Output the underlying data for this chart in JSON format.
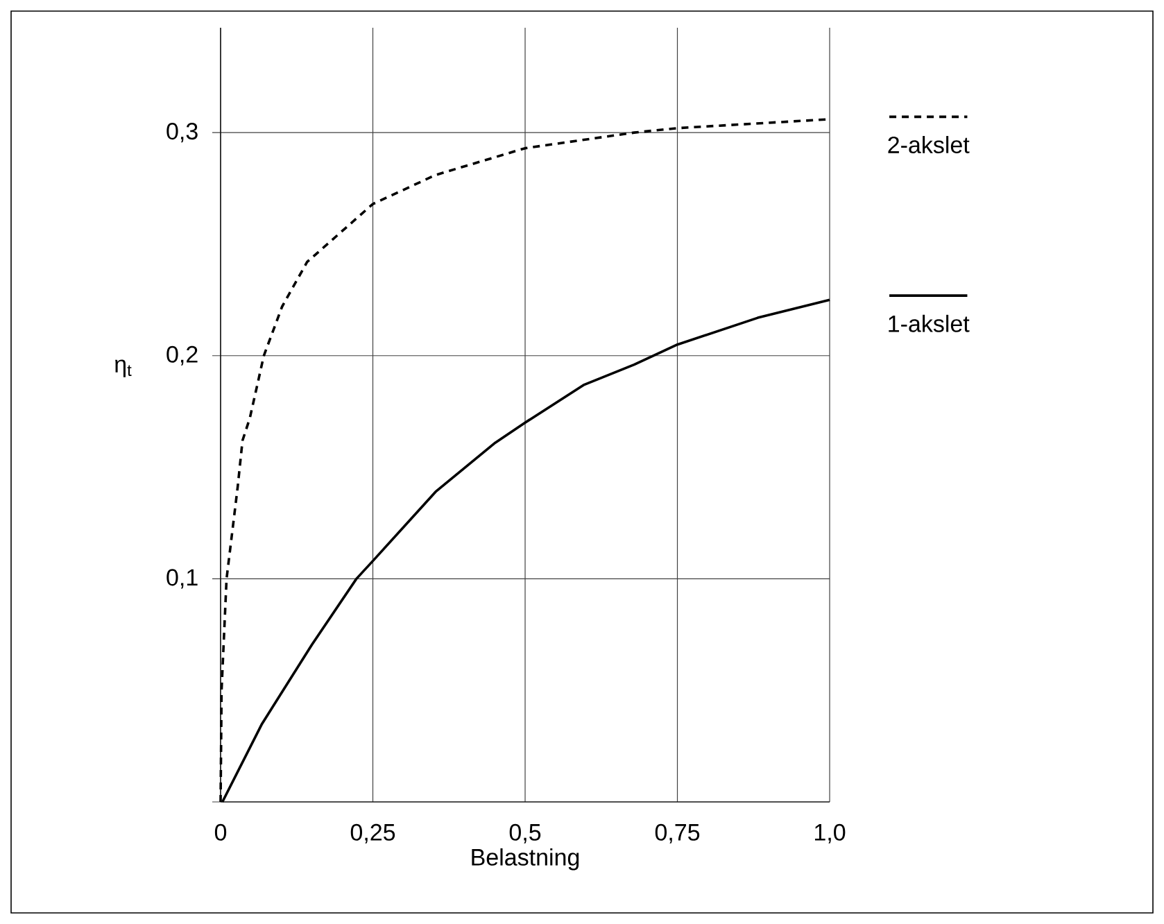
{
  "chart_data": {
    "type": "line",
    "xlabel": "Belastning",
    "ylabel": "η$_{t}$",
    "xlim": [
      0,
      1.0
    ],
    "ylim": [
      0,
      0.347
    ],
    "xticks": [
      {
        "value": 0,
        "label": "0"
      },
      {
        "value": 0.25,
        "label": "0,25"
      },
      {
        "value": 0.5,
        "label": "0,5"
      },
      {
        "value": 0.75,
        "label": "0,75"
      },
      {
        "value": 1.0,
        "label": "1,0"
      }
    ],
    "yticks": [
      {
        "value": 0,
        "label": null
      },
      {
        "value": 0.1,
        "label": "0,1"
      },
      {
        "value": 0.2,
        "label": "0,2"
      },
      {
        "value": 0.3,
        "label": "0,3"
      }
    ],
    "grid": true,
    "legend": "right",
    "marker": "none",
    "series": [
      {
        "name": "2-akslet",
        "color": "#000000",
        "line_style": "dashed",
        "x": [
          0,
          0.0016,
          0.0098,
          0.028,
          0.036,
          0.048,
          0.071,
          0.101,
          0.142,
          0.25,
          0.353,
          0.5,
          0.679,
          0.75,
          1.0
        ],
        "values": [
          0,
          0.05,
          0.1,
          0.141,
          0.162,
          0.172,
          0.2,
          0.222,
          0.242,
          0.268,
          0.281,
          0.293,
          0.3,
          0.302,
          0.306
        ]
      },
      {
        "name": "1-akslet",
        "color": "#000000",
        "line_style": "solid",
        "x": [
          0.003,
          0.068,
          0.15,
          0.223,
          0.25,
          0.353,
          0.451,
          0.5,
          0.597,
          0.679,
          0.75,
          0.882,
          1.0
        ],
        "values": [
          0,
          0.035,
          0.0705,
          0.1,
          0.108,
          0.139,
          0.161,
          0.17,
          0.187,
          0.196,
          0.205,
          0.217,
          0.225
        ]
      }
    ]
  }
}
